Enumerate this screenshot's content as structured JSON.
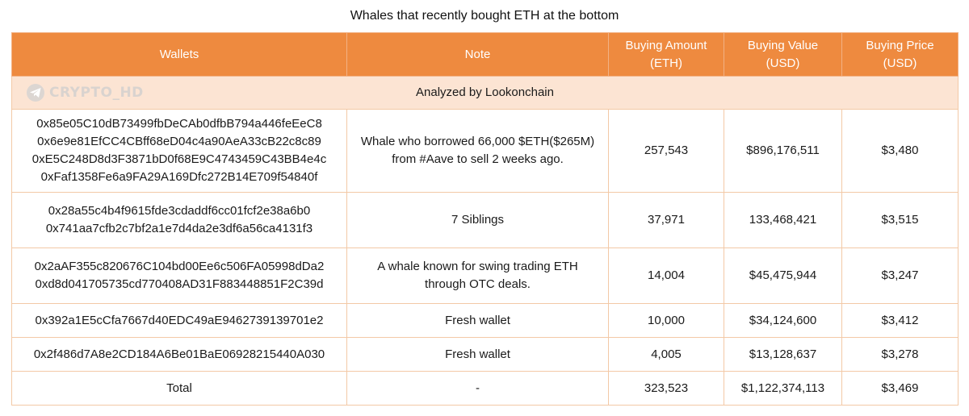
{
  "title": "Whales that recently bought ETH at the bottom",
  "header": {
    "wallets": "Wallets",
    "note": "Note",
    "amount": [
      "Buying Amount",
      "(ETH)"
    ],
    "value": [
      "Buying Value",
      "(USD)"
    ],
    "price": [
      "Buying Price",
      "(USD)"
    ]
  },
  "watermark": "CRYPTO_HD",
  "analyzed": "Analyzed by Lookonchain",
  "rows": [
    {
      "wallets": [
        "0x85e05C10dB73499fbDeCAb0dfbB794a446feEeC8",
        "0x6e9e81EfCC4CBff68eD04c4a90AeA33cB22c8c89",
        "0xE5C248D8d3F3871bD0f68E9C4743459C43BB4e4c",
        "0xFaf1358Fe6a9FA29A169Dfc272B14E709f54840f"
      ],
      "note": [
        "Whale who borrowed 66,000 $ETH($265M)",
        "from #Aave to sell 2 weeks ago."
      ],
      "amount": "257,543",
      "value": "$896,176,511",
      "price": "$3,480"
    },
    {
      "wallets": [
        "0x28a55c4b4f9615fde3cdaddf6cc01fcf2e38a6b0",
        "0x741aa7cfb2c7bf2a1e7d4da2e3df6a56ca4131f3"
      ],
      "note": [
        "7 Siblings"
      ],
      "amount": "37,971",
      "value": "133,468,421",
      "price": "$3,515"
    },
    {
      "wallets": [
        "0x2aAF355c820676C104bd00Ee6c506FA05998dDa2",
        "0xd8d041705735cd770408AD31F883448851F2C39d"
      ],
      "note": [
        "A whale known for swing trading ETH",
        "through OTC deals."
      ],
      "amount": "14,004",
      "value": "$45,475,944",
      "price": "$3,247"
    },
    {
      "wallets": [
        "0x392a1E5cCfa7667d40EDC49aE9462739139701e2"
      ],
      "note": [
        "Fresh wallet"
      ],
      "amount": "10,000",
      "value": "$34,124,600",
      "price": "$3,412"
    },
    {
      "wallets": [
        "0x2f486d7A8e2CD184A6Be01BaE06928215440A030"
      ],
      "note": [
        "Fresh wallet"
      ],
      "amount": "4,005",
      "value": "$13,128,637",
      "price": "$3,278"
    }
  ],
  "total": {
    "label": "Total",
    "note": "-",
    "amount": "323,523",
    "value": "$1,122,374,113",
    "price": "$3,469"
  },
  "colors": {
    "header_bg": "#ee8a3f",
    "analyzed_bg": "#fce4d3",
    "border": "#f3c9a6"
  }
}
